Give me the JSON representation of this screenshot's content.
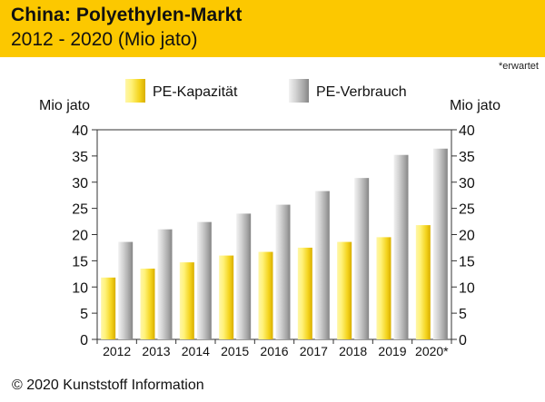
{
  "header": {
    "title": "China: Polyethylen-Markt",
    "subtitle": "2012 - 2020 (Mio jato)"
  },
  "footnote": "*erwartet",
  "credit": "© 2020 Kunststoff Information",
  "colors": {
    "header_bg": "#fcc800",
    "series_capacity": "#f2d21e",
    "series_consumption": "#a9a9a9"
  },
  "chart_data": {
    "type": "bar",
    "title": "China: Polyethylen-Markt",
    "subtitle": "2012 - 2020 (Mio jato)",
    "categories": [
      "2012",
      "2013",
      "2014",
      "2015",
      "2016",
      "2017",
      "2018",
      "2019",
      "2020*"
    ],
    "series": [
      {
        "name": "PE-Kapazität",
        "values": [
          11.8,
          13.5,
          14.7,
          16.0,
          16.7,
          17.5,
          18.6,
          19.5,
          21.8
        ]
      },
      {
        "name": "PE-Verbrauch",
        "values": [
          18.6,
          21.0,
          22.4,
          24.0,
          25.7,
          28.3,
          30.8,
          35.2,
          36.4
        ]
      }
    ],
    "ylabel_left": "Mio jato",
    "ylabel_right": "Mio jato",
    "ylim": [
      0,
      40
    ],
    "yticks": [
      0,
      5,
      10,
      15,
      20,
      25,
      30,
      35,
      40
    ],
    "grid": false,
    "legend": "top-center"
  }
}
